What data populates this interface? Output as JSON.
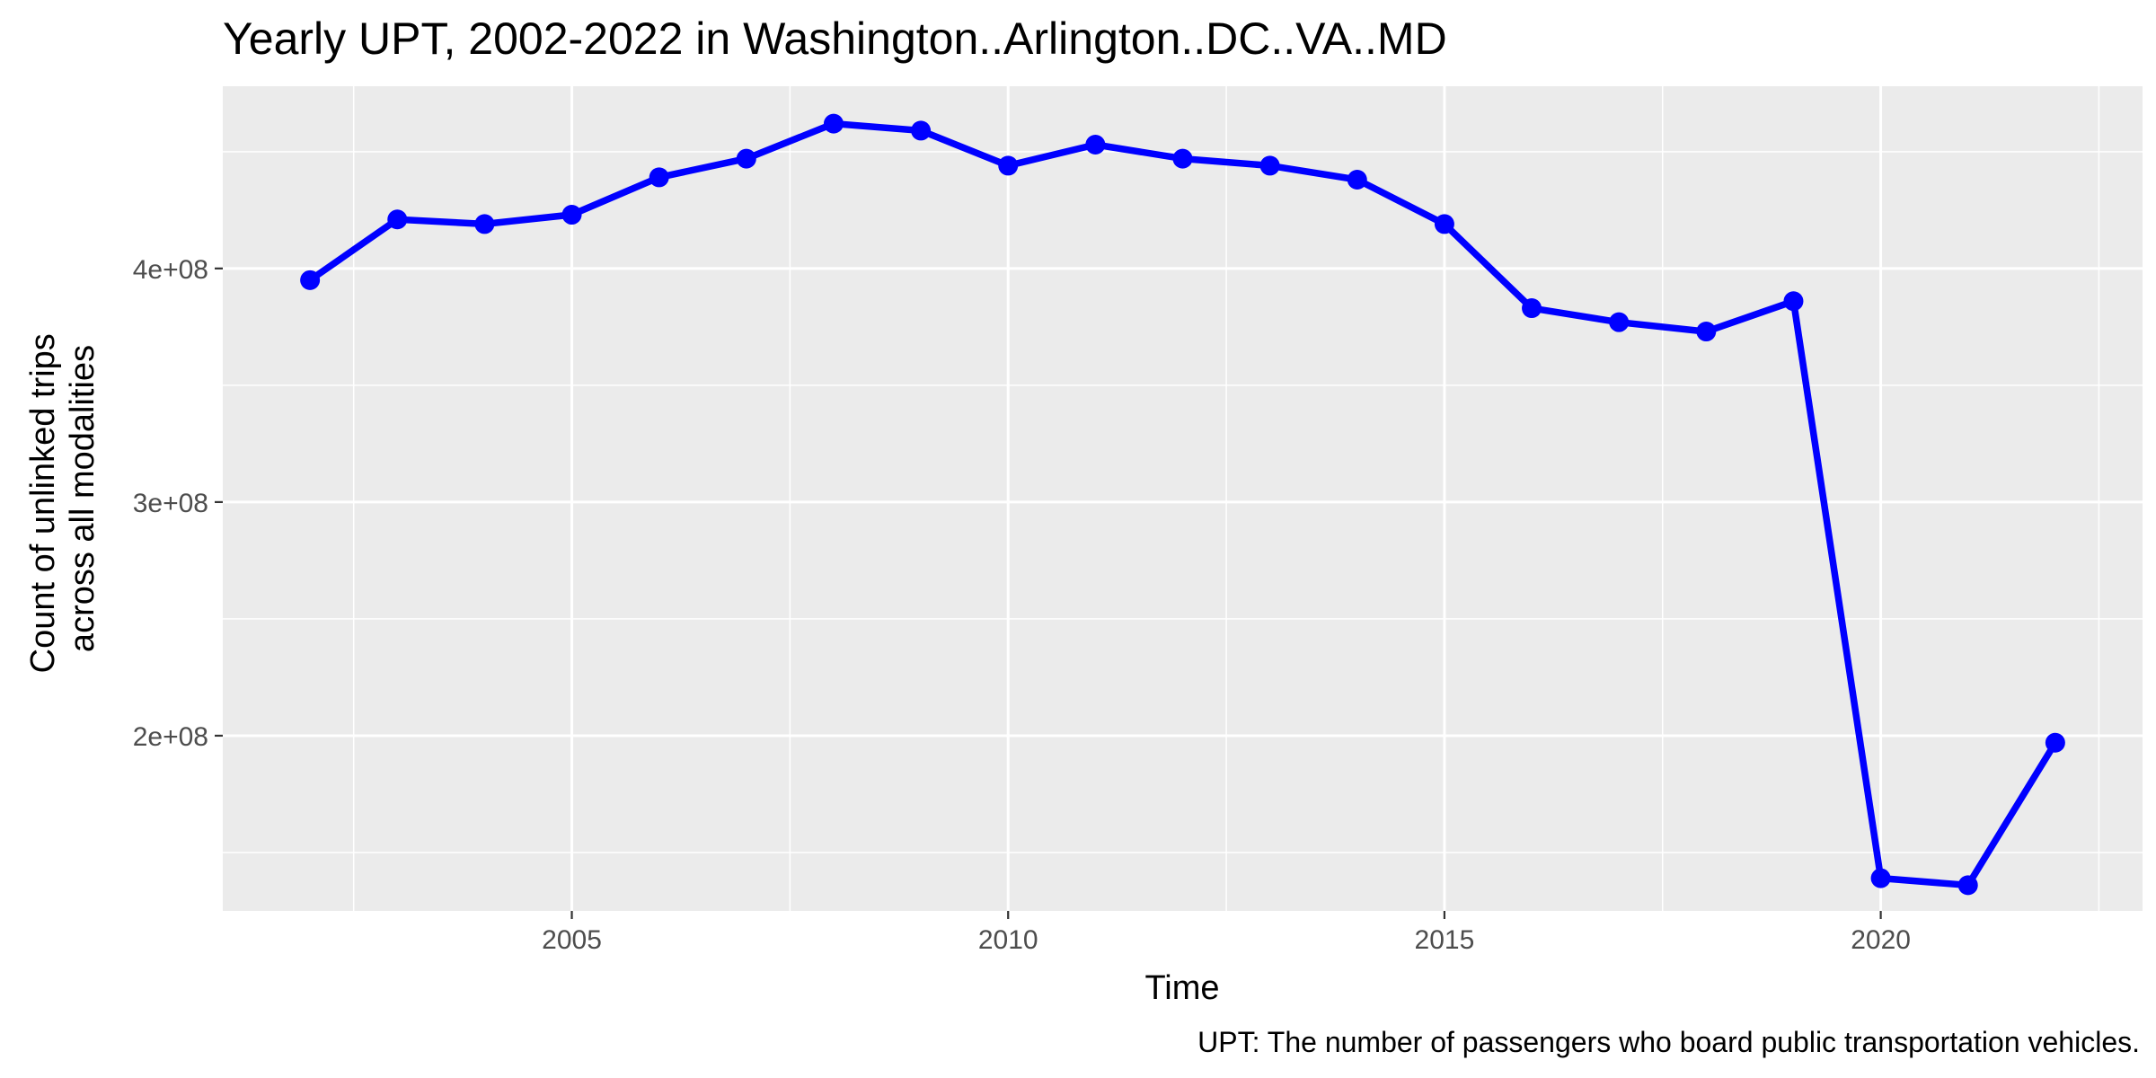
{
  "chart_data": {
    "type": "line",
    "title": "Yearly UPT, 2002-2022 in Washington..Arlington..DC..VA..MD",
    "xlabel": "Time",
    "ylabel_lines": [
      "Count of unlinked trips",
      "across all modalities"
    ],
    "caption": "UPT: The number of passengers who board public transportation vehicles.",
    "x": [
      2002,
      2003,
      2004,
      2005,
      2006,
      2007,
      2008,
      2009,
      2010,
      2011,
      2012,
      2013,
      2014,
      2015,
      2016,
      2017,
      2018,
      2019,
      2020,
      2021,
      2022
    ],
    "series": [
      {
        "values": [
          395000000,
          421000000,
          419000000,
          423000000,
          439000000,
          447000000,
          462000000,
          459000000,
          444000000,
          453000000,
          447000000,
          444000000,
          438000000,
          419000000,
          383000000,
          377000000,
          373000000,
          386000000,
          139000000,
          136000000,
          197000000
        ]
      }
    ],
    "xlim": [
      2001,
      2023
    ],
    "ylim": [
      125000000,
      478000000
    ],
    "x_ticks": [
      2005,
      2010,
      2015,
      2020
    ],
    "x_tick_labels": [
      "2005",
      "2010",
      "2015",
      "2020"
    ],
    "y_ticks": [
      200000000,
      300000000,
      400000000
    ],
    "y_tick_labels": [
      "2e+08",
      "3e+08",
      "4e+08"
    ],
    "line_color": "#0000ff",
    "panel_color": "#ebebeb",
    "grid": true,
    "legend": "none"
  }
}
